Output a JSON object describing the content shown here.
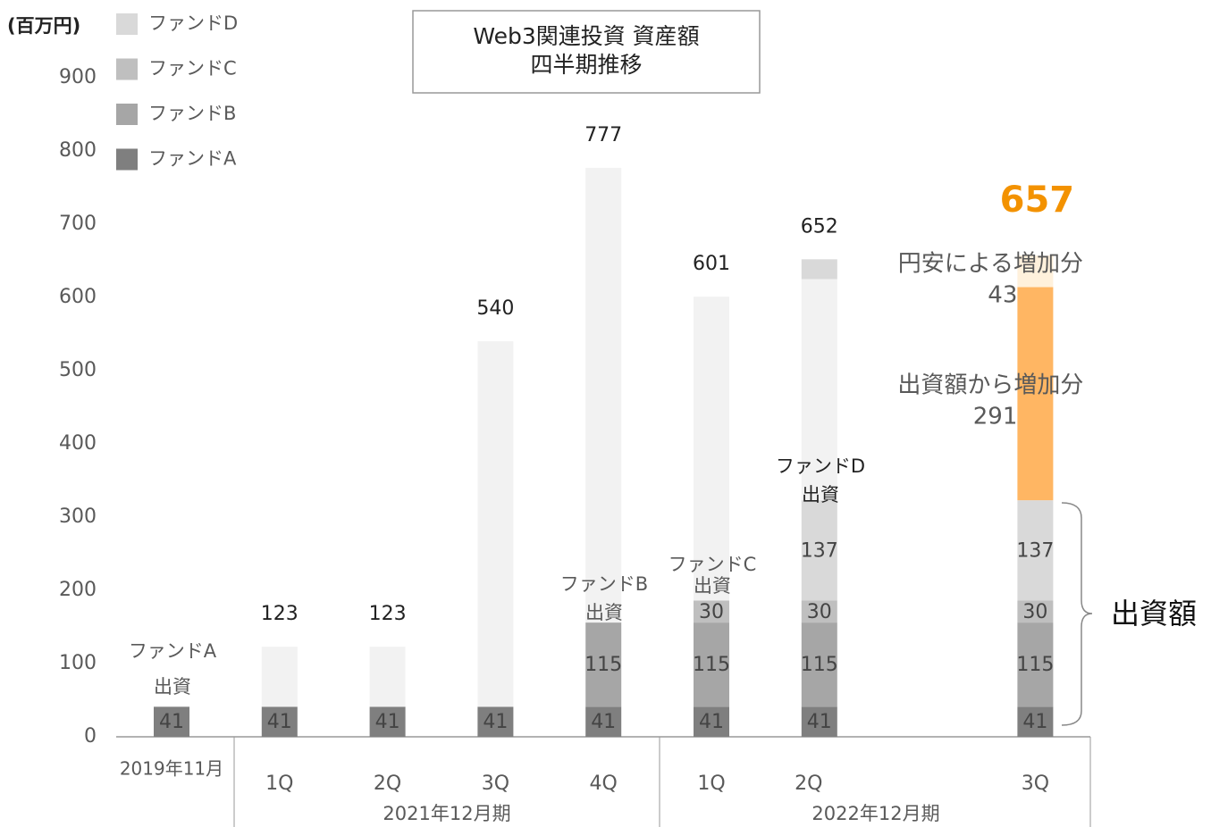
{
  "chart_data": {
    "type": "stacked_bar",
    "title": [
      "Web3関連投資 資産額",
      "四半期推移"
    ],
    "y_label": "(百万円)",
    "categories": [
      "2019年11月",
      "1Q",
      "2Q",
      "3Q",
      "4Q",
      "1Q",
      "2Q",
      null,
      "3Q"
    ],
    "groups": [
      "2021年12月期",
      "2022年12月期"
    ],
    "ylim": [
      0,
      900
    ],
    "yticks": [
      0,
      100,
      200,
      300,
      400,
      500,
      600,
      700,
      800,
      900
    ],
    "series": [
      {
        "name": "ファンドA",
        "color": "#7f7f7f",
        "values": [
          41,
          41,
          41,
          41,
          41,
          41,
          41,
          null,
          41
        ]
      },
      {
        "name": "ファンドB",
        "color": "#a6a6a6",
        "values": [
          null,
          null,
          null,
          null,
          115,
          115,
          115,
          null,
          115
        ]
      },
      {
        "name": "ファンドC",
        "color": "#bfbfbf",
        "values": [
          null,
          null,
          null,
          null,
          null,
          30,
          30,
          null,
          30
        ]
      },
      {
        "name": "ファンドD",
        "color": "#d9d9d9",
        "values": [
          null,
          null,
          null,
          null,
          null,
          null,
          137,
          null,
          137
        ]
      },
      {
        "color": "#f2f2f2",
        "values": [
          null,
          82,
          82,
          499,
          621,
          415,
          302,
          null,
          null
        ]
      },
      {
        "color": "#d9d9d9",
        "values": [
          null,
          null,
          null,
          null,
          null,
          null,
          27,
          null,
          null
        ]
      },
      {
        "label": "出資額から増加分",
        "color": "#ffb663",
        "values": [
          null,
          null,
          null,
          null,
          null,
          null,
          null,
          null,
          291
        ]
      },
      {
        "label": "円安による増加分",
        "color": "#fff1dc",
        "values": [
          null,
          null,
          null,
          null,
          null,
          null,
          null,
          null,
          43
        ]
      }
    ],
    "totals": [
      null,
      123,
      123,
      540,
      777,
      601,
      652,
      null,
      657
    ],
    "annotations": [
      [
        "ファンドA",
        "出資"
      ],
      [
        "ファンドB",
        "出資"
      ],
      [
        "ファンドC",
        "出資"
      ],
      [
        "ファンドD",
        "出資"
      ]
    ],
    "brace_label": "出資額"
  }
}
